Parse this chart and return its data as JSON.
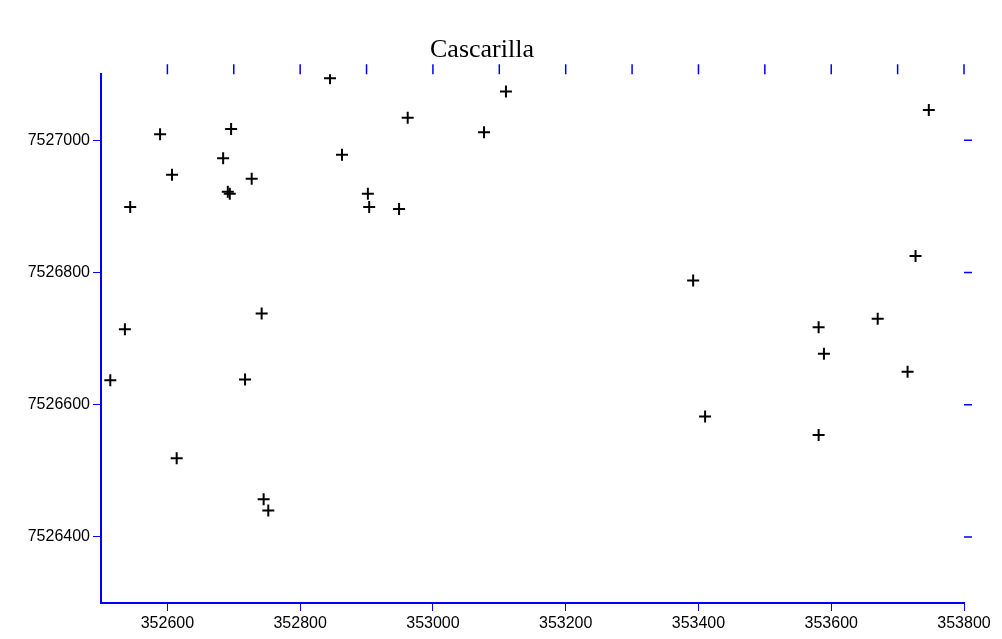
{
  "chart_data": {
    "type": "scatter",
    "title": "Cascarilla",
    "series": [
      {
        "color": "#000000",
        "marker": "cross",
        "x": [
          352845,
          353110,
          353747,
          352589,
          352696,
          353077,
          352962,
          352684,
          352863,
          352607,
          352727,
          352691,
          352694,
          352902,
          352904,
          352949,
          352544,
          352536,
          352514,
          352742,
          352717,
          352614,
          352745,
          352752,
          353392,
          353410,
          353581,
          353589,
          353670,
          353727,
          353715,
          353581
        ],
        "values": [
          7527094,
          7527074,
          7527046,
          7527009,
          7527017,
          7527012,
          7527034,
          7526973,
          7526978,
          7526948,
          7526942,
          7526922,
          7526919,
          7526919,
          7526899,
          7526896,
          7526899,
          7526714,
          7526637,
          7526738,
          7526638,
          7526519,
          7526457,
          7526440,
          7526788,
          7526582,
          7526717,
          7526677,
          7526730,
          7526825,
          7526650,
          7526554
        ]
      }
    ],
    "xlim": [
      352500,
      353800
    ],
    "xticks": [
      352600,
      352800,
      353000,
      353200,
      353400,
      353600,
      353800
    ],
    "ylim": [
      7526300,
      7527100
    ],
    "yticks": [
      7526400,
      7526600,
      7526800,
      7527000
    ],
    "grid": false,
    "legend": false
  }
}
